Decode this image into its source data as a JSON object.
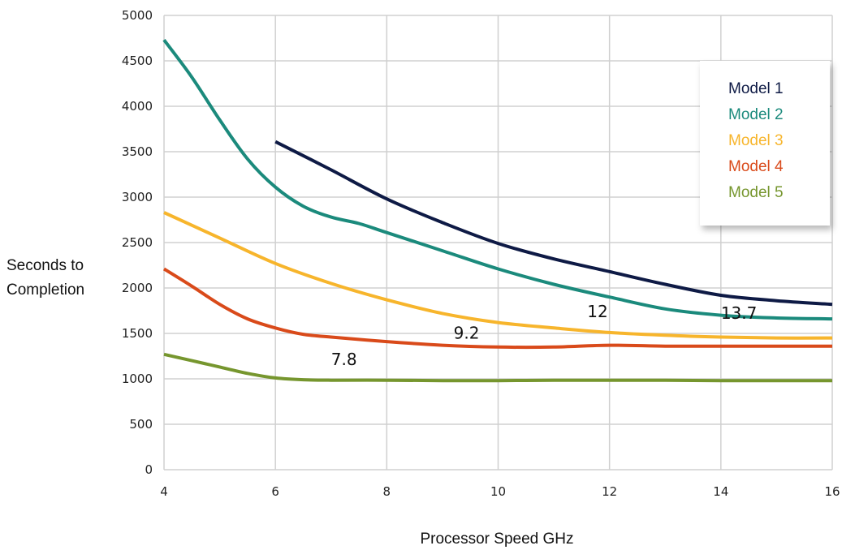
{
  "chart_data": {
    "type": "line",
    "title": "",
    "xlabel": "Processor Speed GHz",
    "ylabel": [
      "Seconds to",
      "Completion"
    ],
    "xlim": [
      4,
      16
    ],
    "ylim": [
      0,
      5000
    ],
    "x_ticks": [
      "4",
      "6",
      "8",
      "10",
      "12",
      "14",
      "16"
    ],
    "y_ticks": [
      "0",
      "500",
      "1000",
      "1500",
      "2000",
      "2500",
      "3000",
      "3500",
      "4000",
      "4500",
      "5000"
    ],
    "grid": true,
    "legend_position": "top-right",
    "series": [
      {
        "name": "Model 1",
        "color": "#0e1a45",
        "x": [
          6,
          7,
          8,
          9,
          10,
          11,
          12,
          13,
          14,
          15,
          16
        ],
        "y": [
          3610,
          3300,
          2980,
          2720,
          2490,
          2320,
          2180,
          2040,
          1920,
          1860,
          1820
        ]
      },
      {
        "name": "Model 2",
        "color": "#1b8a7c",
        "x": [
          4,
          4.5,
          5,
          5.5,
          6,
          6.5,
          7,
          7.5,
          8,
          9,
          10,
          11,
          12,
          13,
          14,
          15,
          16
        ],
        "y": [
          4730,
          4320,
          3850,
          3420,
          3110,
          2900,
          2780,
          2710,
          2610,
          2410,
          2210,
          2040,
          1900,
          1770,
          1700,
          1670,
          1660
        ]
      },
      {
        "name": "Model 3",
        "color": "#f7b52c",
        "x": [
          4,
          5,
          6,
          7,
          8,
          9,
          10,
          11,
          12,
          13,
          14,
          15,
          16
        ],
        "y": [
          2830,
          2550,
          2270,
          2050,
          1870,
          1720,
          1620,
          1560,
          1510,
          1480,
          1460,
          1450,
          1450
        ]
      },
      {
        "name": "Model 4",
        "color": "#d94a1a",
        "x": [
          4,
          4.5,
          5,
          5.5,
          6,
          6.5,
          7,
          8,
          9,
          10,
          11,
          12,
          13,
          14,
          15,
          16
        ],
        "y": [
          2210,
          2020,
          1820,
          1660,
          1560,
          1490,
          1460,
          1410,
          1370,
          1350,
          1350,
          1370,
          1360,
          1360,
          1360,
          1360
        ]
      },
      {
        "name": "Model 5",
        "color": "#76962e",
        "x": [
          4,
          4.5,
          5,
          5.5,
          6,
          6.5,
          7,
          8,
          9,
          10,
          11,
          12,
          13,
          14,
          15,
          16
        ],
        "y": [
          1270,
          1200,
          1130,
          1060,
          1010,
          990,
          985,
          985,
          980,
          980,
          985,
          985,
          985,
          980,
          980,
          980
        ]
      }
    ],
    "annotations": [
      {
        "text": "7.8",
        "x": 7.0,
        "y": 1150
      },
      {
        "text": "9.2",
        "x": 9.2,
        "y": 1440
      },
      {
        "text": "12",
        "x": 11.6,
        "y": 1680
      },
      {
        "text": "13.7",
        "x": 14.0,
        "y": 1660
      }
    ]
  }
}
